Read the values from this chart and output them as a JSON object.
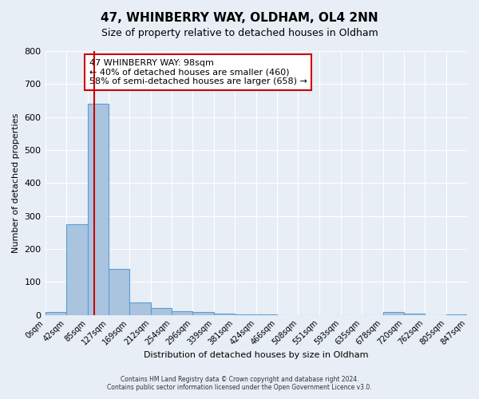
{
  "title": "47, WHINBERRY WAY, OLDHAM, OL4 2NN",
  "subtitle": "Size of property relative to detached houses in Oldham",
  "xlabel": "Distribution of detached houses by size in Oldham",
  "ylabel": "Number of detached properties",
  "bin_edges": [
    0,
    42,
    85,
    127,
    169,
    212,
    254,
    296,
    339,
    381,
    424,
    466,
    508,
    551,
    593,
    635,
    678,
    720,
    762,
    805,
    847
  ],
  "bin_counts": [
    8,
    275,
    640,
    140,
    38,
    20,
    12,
    8,
    3,
    2,
    2,
    0,
    0,
    0,
    0,
    0,
    8,
    3,
    0,
    2
  ],
  "bar_color": "#aac4e0",
  "bar_edge_color": "#5a9fd4",
  "vline_x": 98,
  "vline_color": "#cc0000",
  "annotation_box_text": "47 WHINBERRY WAY: 98sqm\n← 40% of detached houses are smaller (460)\n58% of semi-detached houses are larger (658) →",
  "annotation_box_edge_color": "#cc0000",
  "ylim": [
    0,
    800
  ],
  "yticks": [
    0,
    100,
    200,
    300,
    400,
    500,
    600,
    700,
    800
  ],
  "background_color": "#e8eef5",
  "grid_color": "#ffffff",
  "title_fontsize": 11,
  "subtitle_fontsize": 9,
  "tick_fontsize": 7,
  "ylabel_fontsize": 8,
  "xlabel_fontsize": 8,
  "footer_line1": "Contains HM Land Registry data © Crown copyright and database right 2024.",
  "footer_line2": "Contains public sector information licensed under the Open Government Licence v3.0."
}
